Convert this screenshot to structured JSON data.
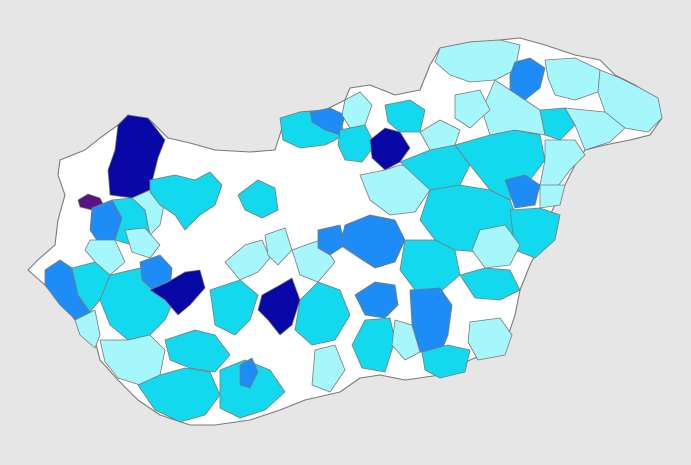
{
  "map": {
    "country": "",
    "palette": {
      "background": "#e6e6e6",
      "no-data": "#ffffff",
      "level-1": "#a5f7fb",
      "level-2": "#12d9ee",
      "level-3": "#1e8cf7",
      "level-4": "#0808a6",
      "level-5": "#5a1184",
      "border": "#7a7a7a"
    }
  }
}
